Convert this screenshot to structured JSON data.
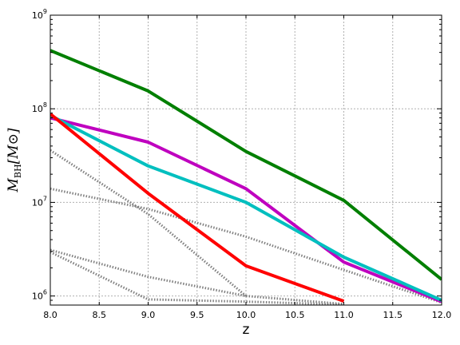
{
  "chart_data": {
    "type": "line",
    "title": "",
    "xlabel": "z",
    "ylabel_main": "M",
    "ylabel_sub": "BH",
    "ylabel_unit": "[M⊙]",
    "xlim": [
      8.0,
      12.0
    ],
    "ylim": [
      800000,
      1000000000
    ],
    "yscale": "log",
    "grid": true,
    "x_ticks": [
      "8.0",
      "8.5",
      "9.0",
      "9.5",
      "10.0",
      "10.5",
      "11.0",
      "11.5",
      "12.0"
    ],
    "y_ticks": [
      {
        "value": 1000000,
        "base": "10",
        "exp": "6"
      },
      {
        "value": 10000000,
        "base": "10",
        "exp": "7"
      },
      {
        "value": 100000000,
        "base": "10",
        "exp": "8"
      },
      {
        "value": 1000000000,
        "base": "10",
        "exp": "9"
      }
    ],
    "series": [
      {
        "style": "solid",
        "color": "#007f00",
        "x": [
          8,
          9,
          10,
          11,
          12
        ],
        "y": [
          420000000,
          155000000,
          35000000,
          10500000,
          1500000
        ]
      },
      {
        "style": "solid",
        "color": "#bf00bf",
        "x": [
          8,
          9,
          10,
          11,
          12
        ],
        "y": [
          80000000,
          44000000,
          14000000,
          2300000,
          870000
        ]
      },
      {
        "style": "solid",
        "color": "#00bfbf",
        "x": [
          8,
          9,
          10,
          11,
          12
        ],
        "y": [
          85000000,
          24500000,
          10000000,
          2600000,
          900000
        ]
      },
      {
        "style": "solid",
        "color": "#ff0000",
        "x": [
          8,
          9,
          10,
          11
        ],
        "y": [
          88000000,
          12500000,
          2100000,
          880000
        ]
      },
      {
        "style": "dotted",
        "color": "#808080",
        "x": [
          8,
          9,
          10
        ],
        "y": [
          36000000,
          7500000,
          1000000
        ]
      },
      {
        "style": "dotted",
        "color": "#808080",
        "x": [
          8,
          9,
          10,
          11,
          12
        ],
        "y": [
          14000000,
          8500000,
          4300000,
          1900000,
          850000
        ]
      },
      {
        "style": "dotted",
        "color": "#808080",
        "x": [
          8,
          9,
          10,
          11
        ],
        "y": [
          3100000,
          1600000,
          1000000,
          820000
        ]
      },
      {
        "style": "dotted",
        "color": "#808080",
        "x": [
          8,
          9,
          10,
          11
        ],
        "y": [
          2950000,
          920000,
          870000,
          810000
        ]
      }
    ]
  }
}
